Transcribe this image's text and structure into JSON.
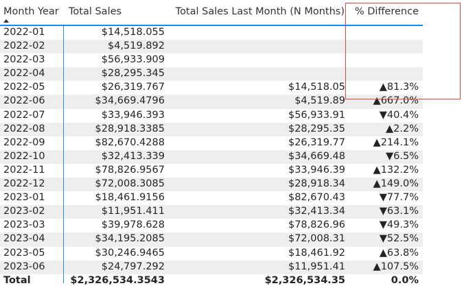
{
  "headers": {
    "month_year": "Month Year",
    "total_sales": "Total Sales",
    "total_sales_last_month": "Total Sales Last Month (N Months)",
    "pct_difference": "% Difference"
  },
  "rows": [
    {
      "month": "2022-01",
      "sales": "$14,518.055",
      "last": "",
      "diff": ""
    },
    {
      "month": "2022-02",
      "sales": "$4,519.892",
      "last": "",
      "diff": ""
    },
    {
      "month": "2022-03",
      "sales": "$56,933.909",
      "last": "",
      "diff": ""
    },
    {
      "month": "2022-04",
      "sales": "$28,295.345",
      "last": "",
      "diff": ""
    },
    {
      "month": "2022-05",
      "sales": "$26,319.767",
      "last": "$14,518.05",
      "diff": "▲81.3%"
    },
    {
      "month": "2022-06",
      "sales": "$34,669.4796",
      "last": "$4,519.89",
      "diff": "▲667.0%"
    },
    {
      "month": "2022-07",
      "sales": "$33,946.393",
      "last": "$56,933.91",
      "diff": "▼40.4%"
    },
    {
      "month": "2022-08",
      "sales": "$28,918.3385",
      "last": "$28,295.35",
      "diff": "▲2.2%"
    },
    {
      "month": "2022-09",
      "sales": "$82,670.4288",
      "last": "$26,319.77",
      "diff": "▲214.1%"
    },
    {
      "month": "2022-10",
      "sales": "$32,413.339",
      "last": "$34,669.48",
      "diff": "▼6.5%"
    },
    {
      "month": "2022-11",
      "sales": "$78,826.9567",
      "last": "$33,946.39",
      "diff": "▲132.2%"
    },
    {
      "month": "2022-12",
      "sales": "$72,008.3085",
      "last": "$28,918.34",
      "diff": "▲149.0%"
    },
    {
      "month": "2023-01",
      "sales": "$18,461.9156",
      "last": "$82,670.43",
      "diff": "▼77.7%"
    },
    {
      "month": "2023-02",
      "sales": "$11,951.411",
      "last": "$32,413.34",
      "diff": "▼63.1%"
    },
    {
      "month": "2023-03",
      "sales": "$39,978.628",
      "last": "$78,826.96",
      "diff": "▼49.3%"
    },
    {
      "month": "2023-04",
      "sales": "$34,195.2085",
      "last": "$72,008.31",
      "diff": "▼52.5%"
    },
    {
      "month": "2023-05",
      "sales": "$30,246.9465",
      "last": "$18,461.92",
      "diff": "▲63.8%"
    },
    {
      "month": "2023-06",
      "sales": "$24,797.292",
      "last": "$11,951.41",
      "diff": "▲107.5%"
    }
  ],
  "total": {
    "label": "Total",
    "sales": "$2,326,534.3543",
    "last": "$2,326,534.35",
    "diff": "0.0%"
  },
  "colors": {
    "accent": "#118DFF",
    "highlight_border": "#E0463F",
    "row_stripe": "#EEEEEE"
  },
  "icons": {
    "sort": "sort-ascending-icon"
  }
}
